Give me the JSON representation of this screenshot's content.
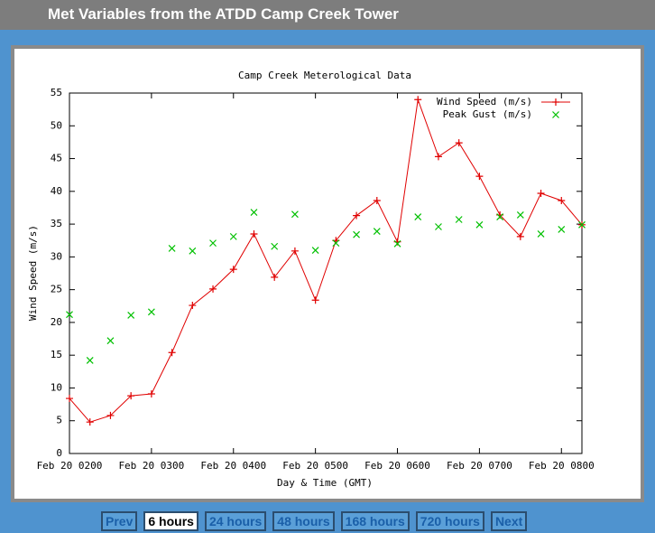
{
  "page": {
    "title": "Met Variables from the ATDD Camp Creek Tower",
    "nav": [
      "Prev",
      "6 hours",
      "24 hours",
      "48 hours",
      "168 hours",
      "720 hours",
      "Next"
    ],
    "active": 1
  },
  "chart_data": {
    "type": "line",
    "title": "Camp Creek Meterological Data",
    "x_label": "Day & Time (GMT)",
    "y_label": "Wind Speed (m/s)",
    "x": [
      2,
      2.25,
      2.5,
      2.75,
      3,
      3.25,
      3.5,
      3.75,
      4,
      4.25,
      4.5,
      4.75,
      5,
      5.25,
      5.5,
      5.75,
      6,
      6.25,
      6.5,
      6.75,
      7,
      7.25,
      7.5,
      7.75,
      8,
      8.25
    ],
    "series": [
      {
        "name": "Wind Speed (m/s)",
        "color": "#e00000",
        "style": "linespoints",
        "values": [
          8.4,
          4.8,
          5.8,
          8.8,
          9.1,
          15.4,
          22.6,
          25.1,
          28.1,
          33.5,
          26.9,
          30.9,
          23.4,
          32.5,
          36.3,
          38.6,
          32.3,
          54.0,
          45.3,
          47.4,
          42.3,
          36.4,
          33.1,
          39.7,
          38.6,
          34.9
        ]
      },
      {
        "name": "Peak Gust (m/s)",
        "color": "#00c000",
        "style": "points",
        "values": [
          21.2,
          14.2,
          17.2,
          21.1,
          21.6,
          31.3,
          30.9,
          32.1,
          33.1,
          36.8,
          31.6,
          36.5,
          31.0,
          32.1,
          33.4,
          33.9,
          32.0,
          36.1,
          34.6,
          35.7,
          34.9,
          36.1,
          36.4,
          33.5,
          34.2,
          34.9
        ]
      }
    ],
    "xlim": [
      2,
      8.25
    ],
    "xticks": [
      {
        "value": 2,
        "label": "Feb 20 0200"
      },
      {
        "value": 3,
        "label": "Feb 20 0300"
      },
      {
        "value": 4,
        "label": "Feb 20 0400"
      },
      {
        "value": 5,
        "label": "Feb 20 0500"
      },
      {
        "value": 6,
        "label": "Feb 20 0600"
      },
      {
        "value": 7,
        "label": "Feb 20 0700"
      },
      {
        "value": 8,
        "label": "Feb 20 0800"
      }
    ],
    "ylim": [
      0,
      55
    ],
    "yticks": [
      0,
      5,
      10,
      15,
      20,
      25,
      30,
      35,
      40,
      45,
      50,
      55
    ],
    "grid": false,
    "legend": "top-right"
  }
}
